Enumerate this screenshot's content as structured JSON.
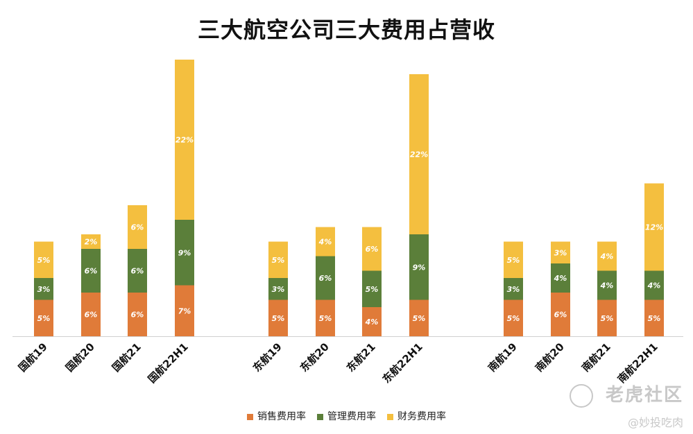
{
  "chart_data": {
    "type": "bar",
    "stacked": true,
    "title": "三大航空公司三大费用占营收",
    "groups": [
      {
        "categories": [
          "国航19",
          "国航20",
          "国航21",
          "国航22H1"
        ]
      },
      {
        "categories": [
          "东航19",
          "东航20",
          "东航21",
          "东航22H1"
        ]
      },
      {
        "categories": [
          "南航19",
          "南航20",
          "南航21",
          "南航22H1"
        ]
      }
    ],
    "categories": [
      "国航19",
      "国航20",
      "国航21",
      "国航22H1",
      "东航19",
      "东航20",
      "东航21",
      "东航22H1",
      "南航19",
      "南航20",
      "南航21",
      "南航22H1"
    ],
    "series": [
      {
        "name": "销售费用率",
        "color": "#E07B39",
        "values": [
          5,
          6,
          6,
          7,
          5,
          5,
          4,
          5,
          5,
          6,
          5,
          5
        ],
        "labels": [
          "5%",
          "6%",
          "6%",
          "7%",
          "5%",
          "5%",
          "4%",
          "5%",
          "5%",
          "6%",
          "5%",
          "5%"
        ]
      },
      {
        "name": "管理费用率",
        "color": "#5B7F3A",
        "values": [
          3,
          6,
          6,
          9,
          3,
          6,
          5,
          9,
          3,
          4,
          4,
          4
        ],
        "labels": [
          "3%",
          "6%",
          "6%",
          "9%",
          "3%",
          "6%",
          "5%",
          "9%",
          "3%",
          "4%",
          "4%",
          "4%"
        ]
      },
      {
        "name": "财务费用率",
        "color": "#F4BF3F",
        "values": [
          5,
          2,
          6,
          22,
          5,
          4,
          6,
          22,
          5,
          3,
          4,
          12
        ],
        "labels": [
          "5%",
          "2%",
          "6%",
          "22%",
          "5%",
          "4%",
          "6%",
          "22%",
          "5%",
          "3%",
          "4%",
          "12%"
        ]
      }
    ],
    "legend": "bottom",
    "grid": false
  },
  "watermark": {
    "brand": "老虎社区",
    "user": "@妙投吃肉"
  }
}
